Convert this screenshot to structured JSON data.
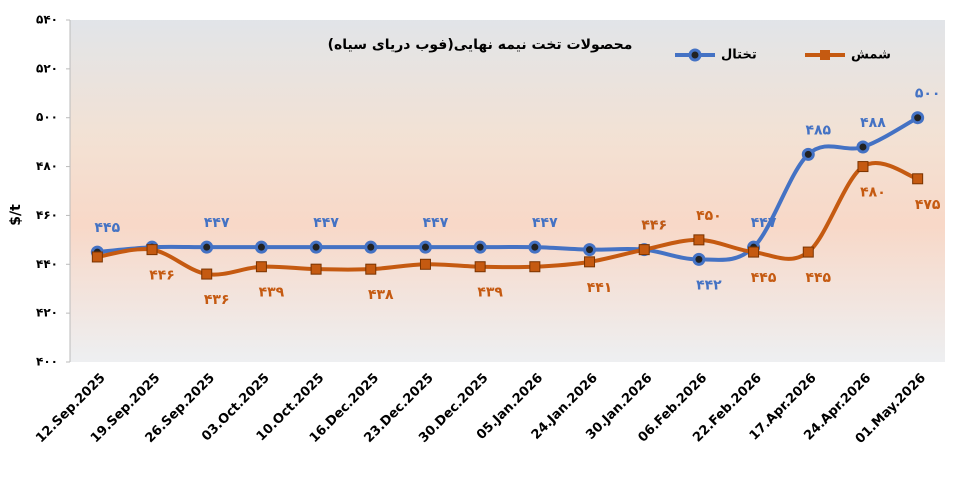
{
  "chart_data": {
    "type": "line",
    "title": "محصولات تخت نیمه نهایی(فوب دریای سیاه)",
    "y_label": "$/t",
    "categories": [
      "12.Sep.2025",
      "19.Sep.2025",
      "26.Sep.2025",
      "03.Oct.2025",
      "10.Oct.2025",
      "16.Dec.2025",
      "23.Dec.2025",
      "30.Dec.2025",
      "05.Jan.2026",
      "24.Jan.2026",
      "30.Jan.2026",
      "06.Feb.2026",
      "22.Feb.2026",
      "17.Apr.2026",
      "24.Apr.2026",
      "01.May.2026"
    ],
    "series": [
      {
        "name": "تختال",
        "color": "#4472c4",
        "marker": "circle",
        "values": [
          445,
          447,
          447,
          447,
          447,
          447,
          447,
          447,
          447,
          446,
          446,
          442,
          447,
          485,
          488,
          500
        ],
        "value_labels": [
          "۴۴۵",
          null,
          "۴۴۷",
          null,
          "۴۴۷",
          null,
          "۴۴۷",
          null,
          "۴۴۷",
          null,
          "۴۴۶",
          "۴۴۲",
          "۴۴۷",
          "۴۸۵",
          "۴۸۸",
          "۵۰۰"
        ]
      },
      {
        "name": "شمش",
        "color": "#c55a11",
        "marker": "square",
        "values": [
          443,
          446,
          436,
          439,
          438,
          438,
          440,
          439,
          439,
          441,
          446,
          450,
          445,
          445,
          480,
          475
        ],
        "value_labels": [
          null,
          "۴۴۶",
          "۴۳۶",
          "۴۳۹",
          null,
          "۴۳۸",
          null,
          "۴۳۹",
          null,
          "۴۴۱",
          "۴۴۶",
          "۴۵۰",
          "۴۴۵",
          "۴۴۵",
          "۴۸۰",
          "۴۷۵"
        ]
      }
    ],
    "ylim": [
      400,
      540
    ],
    "yticks": [
      {
        "value": 400,
        "label": "۴۰۰"
      },
      {
        "value": 420,
        "label": "۴۲۰"
      },
      {
        "value": 440,
        "label": "۴۴۰"
      },
      {
        "value": 460,
        "label": "۴۶۰"
      },
      {
        "value": 480,
        "label": "۴۸۰"
      },
      {
        "value": 500,
        "label": "۵۰۰"
      },
      {
        "value": 520,
        "label": "۵۲۰"
      },
      {
        "value": 540,
        "label": "۵۴۰"
      }
    ],
    "grid": false,
    "legend": "top-right"
  }
}
